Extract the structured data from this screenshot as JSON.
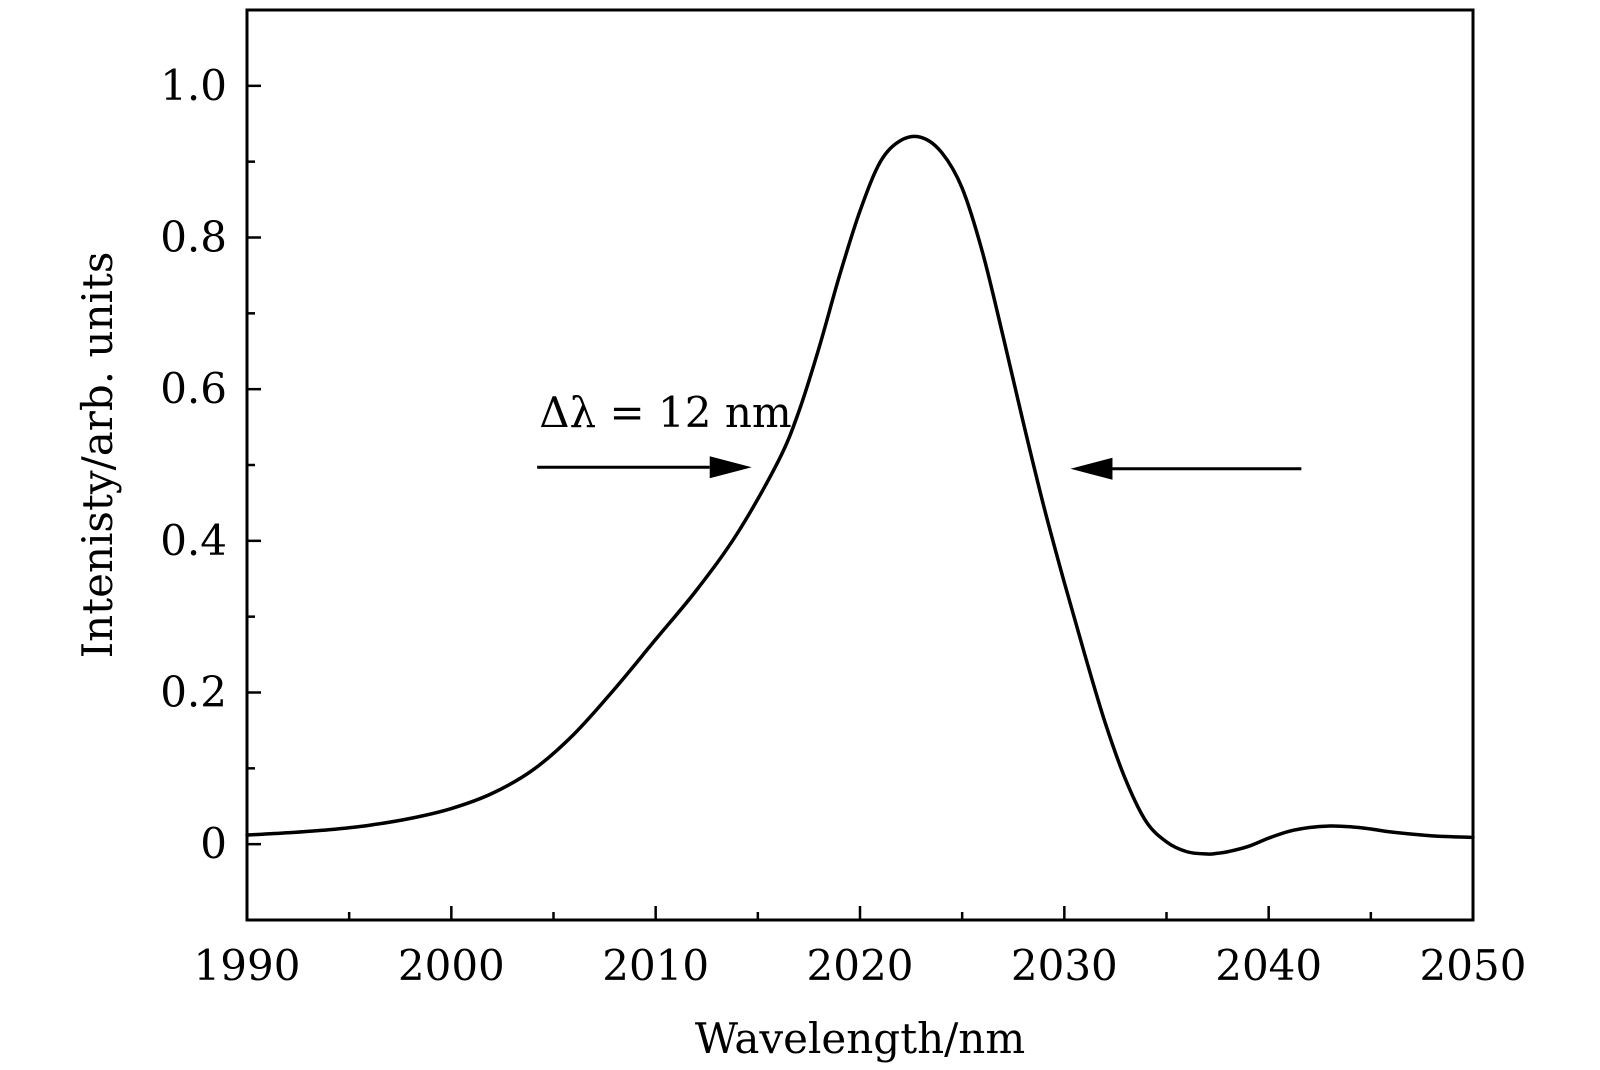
{
  "chart_data": {
    "type": "line",
    "xlabel": "Wavelength/nm",
    "ylabel": "Intenisty/arb. units",
    "xlim": [
      1990,
      2050
    ],
    "ylim": [
      -0.1,
      1.1
    ],
    "x_ticks": [
      1990,
      2000,
      2010,
      2020,
      2030,
      2040,
      2050
    ],
    "x_tick_labels": [
      "1990",
      "2000",
      "2010",
      "2020",
      "2030",
      "2040",
      "2050"
    ],
    "x_minor_ticks": [
      1995,
      2005,
      2015,
      2025,
      2035,
      2045
    ],
    "y_ticks": [
      0,
      0.2,
      0.4,
      0.6,
      0.8,
      1.0
    ],
    "y_tick_labels": [
      "0",
      "0.2",
      "0.4",
      "0.6",
      "0.8",
      "1.0"
    ],
    "y_minor_ticks": [
      0.1,
      0.3,
      0.5,
      0.7,
      0.9
    ],
    "grid": false,
    "series": [
      {
        "x": [
          1990,
          1992,
          1994,
          1996,
          1998,
          2000,
          2002,
          2004,
          2006,
          2008,
          2010,
          2012,
          2014,
          2016,
          2017,
          2018,
          2019,
          2020,
          2021,
          2022,
          2023,
          2024,
          2025,
          2026,
          2027,
          2028,
          2029,
          2030,
          2031,
          2032,
          2033,
          2034,
          2035,
          2036,
          2037,
          2037.5,
          2038,
          2039,
          2040,
          2041,
          2042,
          2043,
          2044,
          2045,
          2046,
          2048,
          2050
        ],
        "y": [
          0.012,
          0.015,
          0.019,
          0.025,
          0.034,
          0.047,
          0.067,
          0.098,
          0.145,
          0.205,
          0.27,
          0.335,
          0.41,
          0.505,
          0.57,
          0.655,
          0.75,
          0.835,
          0.9,
          0.928,
          0.932,
          0.912,
          0.865,
          0.78,
          0.67,
          0.555,
          0.445,
          0.345,
          0.25,
          0.16,
          0.085,
          0.03,
          0.003,
          -0.01,
          -0.013,
          -0.012,
          -0.01,
          -0.003,
          0.008,
          0.017,
          0.022,
          0.024,
          0.023,
          0.02,
          0.016,
          0.011,
          0.009
        ]
      }
    ],
    "annotations": [
      {
        "text": "Δλ = 12 nm",
        "x": 2004.3,
        "y": 0.55
      }
    ],
    "arrows": [
      {
        "from": [
          2004.2,
          0.497
        ],
        "to": [
          2014.7,
          0.497
        ]
      },
      {
        "from": [
          2041.6,
          0.495
        ],
        "to": [
          2030.3,
          0.495
        ]
      }
    ]
  }
}
